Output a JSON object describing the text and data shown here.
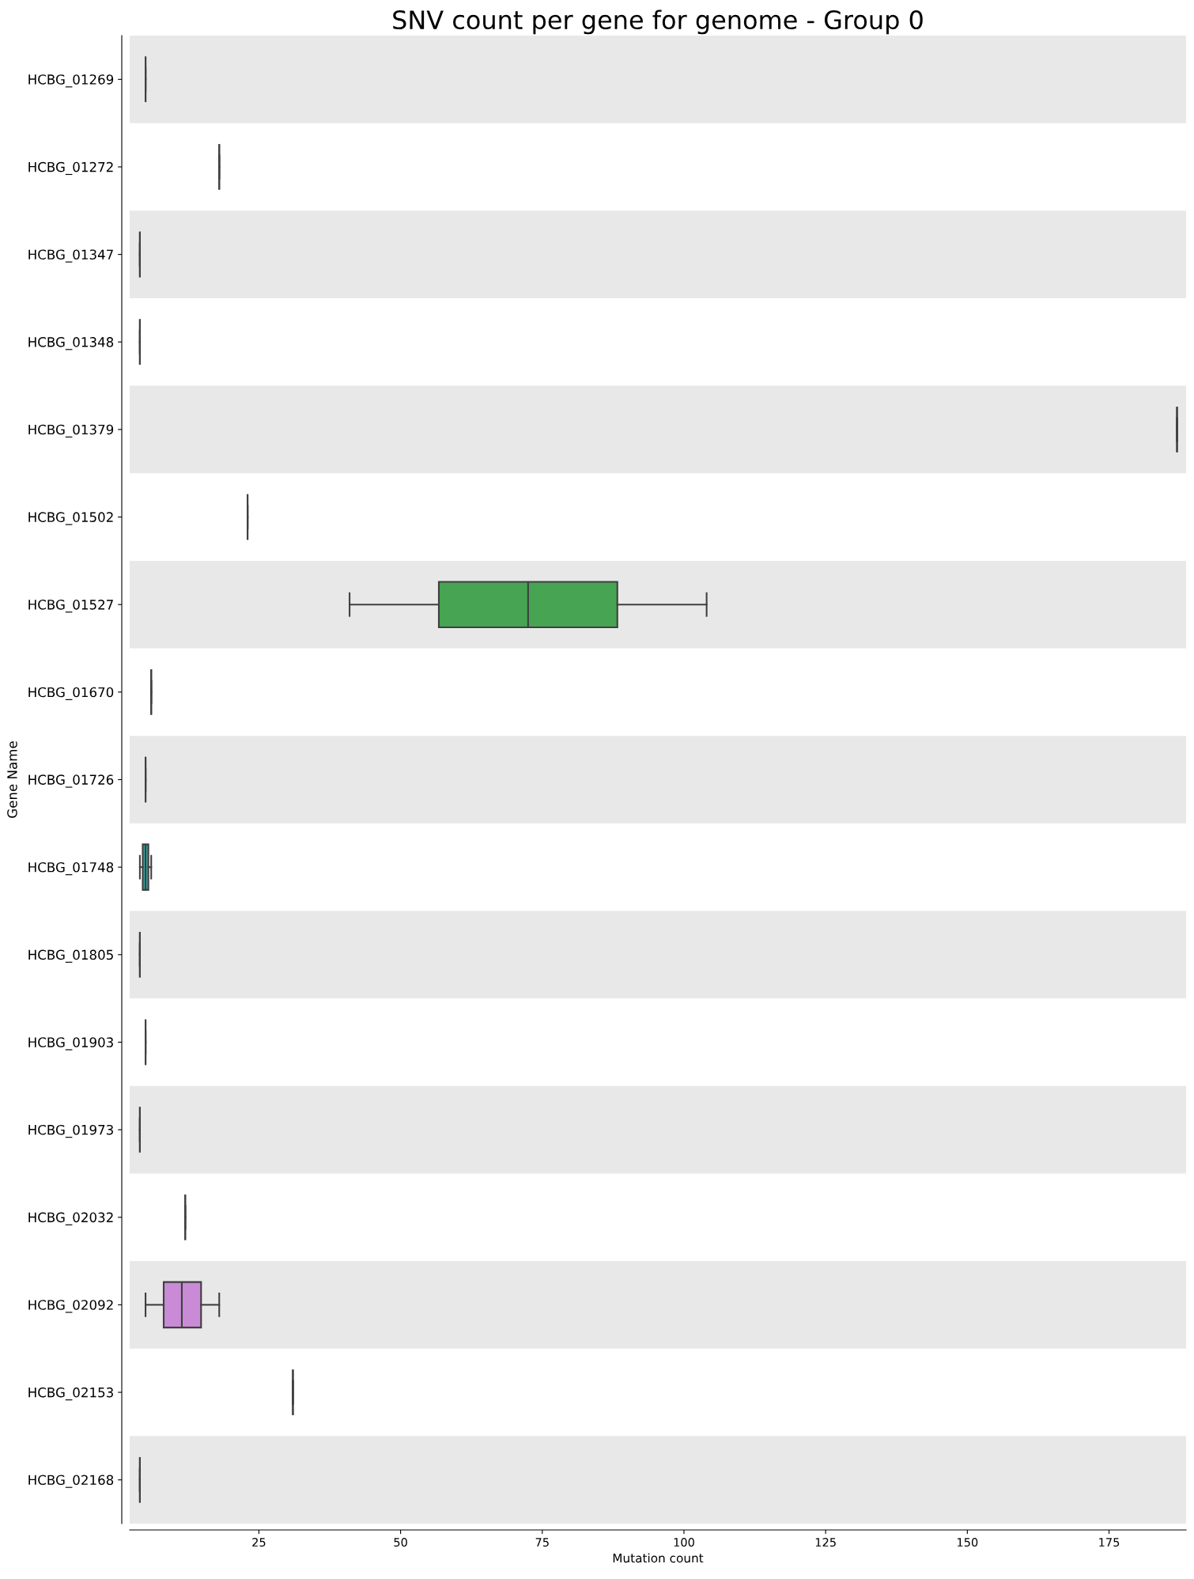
{
  "chart_data": {
    "type": "box",
    "title": "SNV count per gene for genome - Group 0",
    "xlabel": "Mutation count",
    "ylabel": "Gene Name",
    "orientation": "horizontal",
    "categories": [
      "HCBG_01269",
      "HCBG_01272",
      "HCBG_01347",
      "HCBG_01348",
      "HCBG_01379",
      "HCBG_01502",
      "HCBG_01527",
      "HCBG_01670",
      "HCBG_01726",
      "HCBG_01748",
      "HCBG_01805",
      "HCBG_01903",
      "HCBG_01973",
      "HCBG_02032",
      "HCBG_02092",
      "HCBG_02153",
      "HCBG_02168"
    ],
    "boxes": [
      {
        "low": 5,
        "q1": 5,
        "median": 5,
        "q3": 5,
        "high": 5
      },
      {
        "low": 18,
        "q1": 18,
        "median": 18,
        "q3": 18,
        "high": 18
      },
      {
        "low": 4,
        "q1": 4,
        "median": 4,
        "q3": 4,
        "high": 4
      },
      {
        "low": 4,
        "q1": 4,
        "median": 4,
        "q3": 4,
        "high": 4
      },
      {
        "low": 187,
        "q1": 187,
        "median": 187,
        "q3": 187,
        "high": 187
      },
      {
        "low": 23,
        "q1": 23,
        "median": 23,
        "q3": 23,
        "high": 23
      },
      {
        "low": 41,
        "q1": 56.75,
        "median": 72.5,
        "q3": 88.25,
        "high": 104
      },
      {
        "low": 6,
        "q1": 6,
        "median": 6,
        "q3": 6,
        "high": 6
      },
      {
        "low": 5,
        "q1": 5,
        "median": 5,
        "q3": 5,
        "high": 5
      },
      {
        "low": 4,
        "q1": 4.5,
        "median": 5,
        "q3": 5.5,
        "high": 6
      },
      {
        "low": 4,
        "q1": 4,
        "median": 4,
        "q3": 4,
        "high": 4
      },
      {
        "low": 5,
        "q1": 5,
        "median": 5,
        "q3": 5,
        "high": 5
      },
      {
        "low": 4,
        "q1": 4,
        "median": 4,
        "q3": 4,
        "high": 4
      },
      {
        "low": 12,
        "q1": 12,
        "median": 12,
        "q3": 12,
        "high": 12
      },
      {
        "low": 5,
        "q1": 8.2,
        "median": 11.4,
        "q3": 14.8,
        "high": 18
      },
      {
        "low": 31,
        "q1": 31,
        "median": 31,
        "q3": 31,
        "high": 31
      },
      {
        "low": 4,
        "q1": 4,
        "median": 4,
        "q3": 4,
        "high": 4
      }
    ],
    "colors": [
      null,
      null,
      null,
      null,
      null,
      null,
      "#46a453",
      null,
      null,
      "#3aa3a0",
      null,
      null,
      null,
      null,
      "#c98bd5",
      null,
      null
    ],
    "xlim": [
      2.2,
      188.6
    ],
    "xticks": [
      25,
      50,
      75,
      100,
      125,
      150,
      175
    ],
    "bands": [
      {
        "axis": "y",
        "from": "HCBG_01269",
        "to": "HCBG_01269",
        "color": "#e8e8e8"
      },
      {
        "axis": "y",
        "from": "HCBG_01347",
        "to": "HCBG_01347",
        "color": "#e8e8e8"
      },
      {
        "axis": "y",
        "from": "HCBG_01379",
        "to": "HCBG_01379",
        "color": "#e8e8e8"
      },
      {
        "axis": "y",
        "from": "HCBG_01527",
        "to": "HCBG_01527",
        "color": "#e8e8e8"
      },
      {
        "axis": "y",
        "from": "HCBG_01726",
        "to": "HCBG_01726",
        "color": "#e8e8e8"
      },
      {
        "axis": "y",
        "from": "HCBG_01805",
        "to": "HCBG_01805",
        "color": "#e8e8e8"
      },
      {
        "axis": "y",
        "from": "HCBG_01973",
        "to": "HCBG_01973",
        "color": "#e8e8e8"
      },
      {
        "axis": "y",
        "from": "HCBG_02092",
        "to": "HCBG_02092",
        "color": "#e8e8e8"
      },
      {
        "axis": "y",
        "from": "HCBG_02168",
        "to": "HCBG_02168",
        "color": "#e8e8e8"
      }
    ],
    "grid": false
  }
}
